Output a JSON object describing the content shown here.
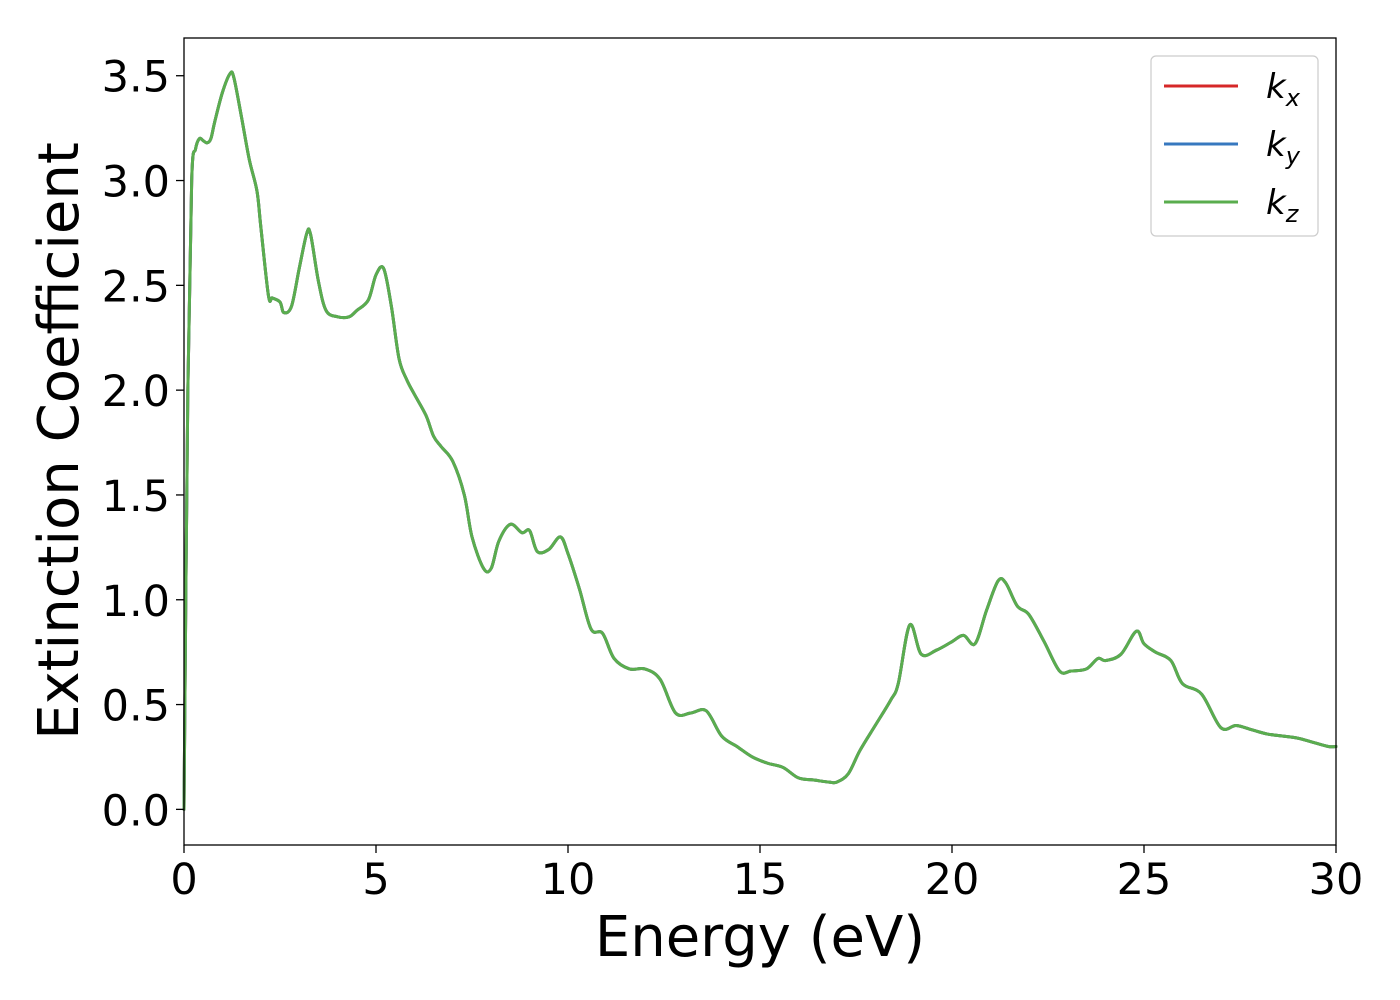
{
  "chart_data": {
    "type": "line",
    "title": "",
    "xlabel": "Energy (eV)",
    "ylabel": "Extinction Coefficient",
    "xlim": [
      0,
      30
    ],
    "ylim": [
      -0.17,
      3.68
    ],
    "xticks": [
      0,
      5,
      10,
      15,
      20,
      25,
      30
    ],
    "yticks": [
      0.0,
      0.5,
      1.0,
      1.5,
      2.0,
      2.5,
      3.0,
      3.5
    ],
    "xtick_labels": [
      "0",
      "5",
      "10",
      "15",
      "20",
      "25",
      "30"
    ],
    "ytick_labels": [
      "0.0",
      "0.5",
      "1.0",
      "1.5",
      "2.0",
      "2.5",
      "3.0",
      "3.5"
    ],
    "grid": false,
    "legend_position": "top-right",
    "x": [
      0,
      0.1,
      0.2,
      0.3,
      0.4,
      0.5,
      0.6,
      0.7,
      0.8,
      1.0,
      1.2,
      1.3,
      1.5,
      1.7,
      1.9,
      2.0,
      2.2,
      2.3,
      2.5,
      2.6,
      2.8,
      3.0,
      3.2,
      3.3,
      3.5,
      3.7,
      4.0,
      4.3,
      4.5,
      4.8,
      5.0,
      5.2,
      5.4,
      5.6,
      5.8,
      6.0,
      6.3,
      6.5,
      6.7,
      7.0,
      7.3,
      7.5,
      7.8,
      8.0,
      8.2,
      8.5,
      8.8,
      9.0,
      9.2,
      9.5,
      9.8,
      10.0,
      10.3,
      10.6,
      10.9,
      11.2,
      11.6,
      12.0,
      12.4,
      12.8,
      13.2,
      13.6,
      14.0,
      14.4,
      14.8,
      15.2,
      15.6,
      16.0,
      16.4,
      16.8,
      17.0,
      17.3,
      17.6,
      18.0,
      18.4,
      18.6,
      18.9,
      19.2,
      19.6,
      20.0,
      20.3,
      20.6,
      20.9,
      21.2,
      21.4,
      21.7,
      22.0,
      22.4,
      22.8,
      23.1,
      23.5,
      23.8,
      24.0,
      24.4,
      24.8,
      25.0,
      25.3,
      25.7,
      26.0,
      26.5,
      27.0,
      27.4,
      27.8,
      28.2,
      28.6,
      29.0,
      29.4,
      29.8,
      30.0
    ],
    "series": [
      {
        "name": "k_x",
        "color": "#d62728",
        "values": [
          0.0,
          2.0,
          3.0,
          3.15,
          3.2,
          3.19,
          3.18,
          3.2,
          3.28,
          3.42,
          3.51,
          3.49,
          3.3,
          3.1,
          2.95,
          2.78,
          2.45,
          2.44,
          2.42,
          2.37,
          2.4,
          2.58,
          2.75,
          2.74,
          2.52,
          2.38,
          2.35,
          2.35,
          2.38,
          2.43,
          2.55,
          2.58,
          2.4,
          2.15,
          2.05,
          1.98,
          1.88,
          1.78,
          1.73,
          1.66,
          1.5,
          1.3,
          1.15,
          1.15,
          1.28,
          1.36,
          1.32,
          1.33,
          1.23,
          1.24,
          1.3,
          1.22,
          1.05,
          0.86,
          0.84,
          0.72,
          0.67,
          0.67,
          0.62,
          0.46,
          0.46,
          0.47,
          0.35,
          0.3,
          0.25,
          0.22,
          0.2,
          0.15,
          0.14,
          0.13,
          0.13,
          0.17,
          0.28,
          0.4,
          0.52,
          0.6,
          0.88,
          0.74,
          0.76,
          0.8,
          0.83,
          0.79,
          0.95,
          1.09,
          1.08,
          0.97,
          0.93,
          0.8,
          0.66,
          0.66,
          0.67,
          0.72,
          0.71,
          0.74,
          0.85,
          0.79,
          0.75,
          0.71,
          0.6,
          0.55,
          0.39,
          0.4,
          0.38,
          0.36,
          0.35,
          0.34,
          0.32,
          0.3,
          0.3
        ]
      },
      {
        "name": "k_y",
        "color": "#3778bf",
        "values": [
          0.0,
          2.0,
          3.0,
          3.15,
          3.2,
          3.19,
          3.18,
          3.2,
          3.28,
          3.42,
          3.51,
          3.49,
          3.3,
          3.1,
          2.95,
          2.78,
          2.45,
          2.44,
          2.42,
          2.37,
          2.4,
          2.58,
          2.75,
          2.74,
          2.52,
          2.38,
          2.35,
          2.35,
          2.38,
          2.43,
          2.55,
          2.58,
          2.4,
          2.15,
          2.05,
          1.98,
          1.88,
          1.78,
          1.73,
          1.66,
          1.5,
          1.3,
          1.15,
          1.15,
          1.28,
          1.36,
          1.32,
          1.33,
          1.23,
          1.24,
          1.3,
          1.22,
          1.05,
          0.86,
          0.84,
          0.72,
          0.67,
          0.67,
          0.62,
          0.46,
          0.46,
          0.47,
          0.35,
          0.3,
          0.25,
          0.22,
          0.2,
          0.15,
          0.14,
          0.13,
          0.13,
          0.17,
          0.28,
          0.4,
          0.52,
          0.6,
          0.88,
          0.74,
          0.76,
          0.8,
          0.83,
          0.79,
          0.95,
          1.09,
          1.08,
          0.97,
          0.93,
          0.8,
          0.66,
          0.66,
          0.67,
          0.72,
          0.71,
          0.74,
          0.85,
          0.79,
          0.75,
          0.71,
          0.6,
          0.55,
          0.39,
          0.4,
          0.38,
          0.36,
          0.35,
          0.34,
          0.32,
          0.3,
          0.3
        ]
      },
      {
        "name": "k_z",
        "color": "#5aad4e",
        "values": [
          0.0,
          2.0,
          3.0,
          3.15,
          3.2,
          3.19,
          3.18,
          3.2,
          3.28,
          3.42,
          3.51,
          3.49,
          3.3,
          3.1,
          2.95,
          2.78,
          2.45,
          2.44,
          2.42,
          2.37,
          2.4,
          2.58,
          2.75,
          2.74,
          2.52,
          2.38,
          2.35,
          2.35,
          2.38,
          2.43,
          2.55,
          2.58,
          2.4,
          2.15,
          2.05,
          1.98,
          1.88,
          1.78,
          1.73,
          1.66,
          1.5,
          1.3,
          1.15,
          1.15,
          1.28,
          1.36,
          1.32,
          1.33,
          1.23,
          1.24,
          1.3,
          1.22,
          1.05,
          0.86,
          0.84,
          0.72,
          0.67,
          0.67,
          0.62,
          0.46,
          0.46,
          0.47,
          0.35,
          0.3,
          0.25,
          0.22,
          0.2,
          0.15,
          0.14,
          0.13,
          0.13,
          0.17,
          0.28,
          0.4,
          0.52,
          0.6,
          0.88,
          0.74,
          0.76,
          0.8,
          0.83,
          0.79,
          0.95,
          1.09,
          1.08,
          0.97,
          0.93,
          0.8,
          0.66,
          0.66,
          0.67,
          0.72,
          0.71,
          0.74,
          0.85,
          0.79,
          0.75,
          0.71,
          0.6,
          0.55,
          0.39,
          0.4,
          0.38,
          0.36,
          0.35,
          0.34,
          0.32,
          0.3,
          0.3
        ]
      }
    ],
    "legend": [
      {
        "base": "k",
        "sub": "x",
        "color": "#d62728"
      },
      {
        "base": "k",
        "sub": "y",
        "color": "#3778bf"
      },
      {
        "base": "k",
        "sub": "z",
        "color": "#5aad4e"
      }
    ]
  }
}
